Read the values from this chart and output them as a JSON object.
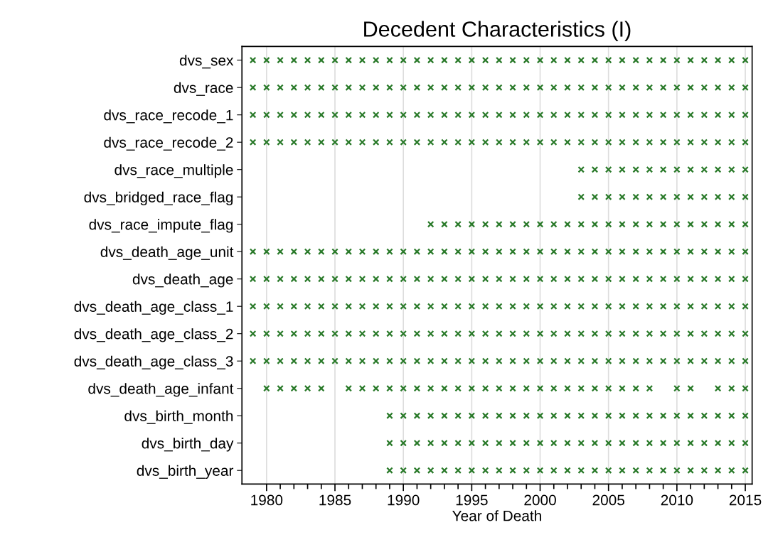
{
  "chart_data": {
    "type": "scatter",
    "title": "Decedent Characteristics (I)",
    "xlabel": "Year of Death",
    "orientation": "horizontal",
    "marker": "cross",
    "grid": "x",
    "color": "#2a7a2a",
    "xlim": [
      1978.2,
      2015.5
    ],
    "xticks": [
      1980,
      {
        "value": 1981,
        "label": null
      },
      {
        "value": 1982,
        "label": null
      },
      {
        "value": 1983,
        "label": null
      },
      {
        "value": 1984,
        "label": null
      },
      1985,
      {
        "value": 1986,
        "label": null
      },
      {
        "value": 1987,
        "label": null
      },
      {
        "value": 1988,
        "label": null
      },
      {
        "value": 1989,
        "label": null
      },
      1990,
      {
        "value": 1991,
        "label": null
      },
      {
        "value": 1992,
        "label": null
      },
      {
        "value": 1993,
        "label": null
      },
      {
        "value": 1994,
        "label": null
      },
      1995,
      {
        "value": 1996,
        "label": null
      },
      {
        "value": 1997,
        "label": null
      },
      {
        "value": 1998,
        "label": null
      },
      {
        "value": 1999,
        "label": null
      },
      2000,
      {
        "value": 2001,
        "label": null
      },
      {
        "value": 2002,
        "label": null
      },
      {
        "value": 2003,
        "label": null
      },
      {
        "value": 2004,
        "label": null
      },
      2005,
      {
        "value": 2006,
        "label": null
      },
      {
        "value": 2007,
        "label": null
      },
      {
        "value": 2008,
        "label": null
      },
      {
        "value": 2009,
        "label": null
      },
      2010,
      {
        "value": 2011,
        "label": null
      },
      {
        "value": 2012,
        "label": null
      },
      {
        "value": 2013,
        "label": null
      },
      {
        "value": 2014,
        "label": null
      },
      2015
    ],
    "categories": [
      "dvs_sex",
      "dvs_race",
      "dvs_race_recode_1",
      "dvs_race_recode_2",
      "dvs_race_multiple",
      "dvs_bridged_race_flag",
      "dvs_race_impute_flag",
      "dvs_death_age_unit",
      "dvs_death_age",
      "dvs_death_age_class_1",
      "dvs_death_age_class_2",
      "dvs_death_age_class_3",
      "dvs_death_age_infant",
      "dvs_birth_month",
      "dvs_birth_day",
      "dvs_birth_year"
    ],
    "series": [
      {
        "values": [
          1979,
          1979,
          1979,
          1979,
          null,
          null,
          null,
          1979,
          1979,
          1979,
          1979,
          1979,
          null,
          null,
          null,
          null
        ]
      },
      {
        "values": [
          1980,
          1980,
          1980,
          1980,
          null,
          null,
          null,
          1980,
          1980,
          1980,
          1980,
          1980,
          1980,
          null,
          null,
          null
        ]
      },
      {
        "values": [
          1981,
          1981,
          1981,
          1981,
          null,
          null,
          null,
          1981,
          1981,
          1981,
          1981,
          1981,
          1981,
          null,
          null,
          null
        ]
      },
      {
        "values": [
          1982,
          1982,
          1982,
          1982,
          null,
          null,
          null,
          1982,
          1982,
          1982,
          1982,
          1982,
          1982,
          null,
          null,
          null
        ]
      },
      {
        "values": [
          1983,
          1983,
          1983,
          1983,
          null,
          null,
          null,
          1983,
          1983,
          1983,
          1983,
          1983,
          1983,
          null,
          null,
          null
        ]
      },
      {
        "values": [
          1984,
          1984,
          1984,
          1984,
          null,
          null,
          null,
          1984,
          1984,
          1984,
          1984,
          1984,
          1984,
          null,
          null,
          null
        ]
      },
      {
        "values": [
          1985,
          1985,
          1985,
          1985,
          null,
          null,
          null,
          1985,
          1985,
          1985,
          1985,
          1985,
          null,
          null,
          null,
          null
        ]
      },
      {
        "values": [
          1986,
          1986,
          1986,
          1986,
          null,
          null,
          null,
          1986,
          1986,
          1986,
          1986,
          1986,
          1986,
          null,
          null,
          null
        ]
      },
      {
        "values": [
          1987,
          1987,
          1987,
          1987,
          null,
          null,
          null,
          1987,
          1987,
          1987,
          1987,
          1987,
          1987,
          null,
          null,
          null
        ]
      },
      {
        "values": [
          1988,
          1988,
          1988,
          1988,
          null,
          null,
          null,
          1988,
          1988,
          1988,
          1988,
          1988,
          1988,
          null,
          null,
          null
        ]
      },
      {
        "values": [
          1989,
          1989,
          1989,
          1989,
          null,
          null,
          null,
          1989,
          1989,
          1989,
          1989,
          1989,
          1989,
          1989,
          1989,
          1989
        ]
      },
      {
        "values": [
          1990,
          1990,
          1990,
          1990,
          null,
          null,
          null,
          1990,
          1990,
          1990,
          1990,
          1990,
          1990,
          1990,
          1990,
          1990
        ]
      },
      {
        "values": [
          1991,
          1991,
          1991,
          1991,
          null,
          null,
          null,
          1991,
          1991,
          1991,
          1991,
          1991,
          1991,
          1991,
          1991,
          1991
        ]
      },
      {
        "values": [
          1992,
          1992,
          1992,
          1992,
          null,
          null,
          1992,
          1992,
          1992,
          1992,
          1992,
          1992,
          1992,
          1992,
          1992,
          1992
        ]
      },
      {
        "values": [
          1993,
          1993,
          1993,
          1993,
          null,
          null,
          1993,
          1993,
          1993,
          1993,
          1993,
          1993,
          1993,
          1993,
          1993,
          1993
        ]
      },
      {
        "values": [
          1994,
          1994,
          1994,
          1994,
          null,
          null,
          1994,
          1994,
          1994,
          1994,
          1994,
          1994,
          1994,
          1994,
          1994,
          1994
        ]
      },
      {
        "values": [
          1995,
          1995,
          1995,
          1995,
          null,
          null,
          1995,
          1995,
          1995,
          1995,
          1995,
          1995,
          1995,
          1995,
          1995,
          1995
        ]
      },
      {
        "values": [
          1996,
          1996,
          1996,
          1996,
          null,
          null,
          1996,
          1996,
          1996,
          1996,
          1996,
          1996,
          1996,
          1996,
          1996,
          1996
        ]
      },
      {
        "values": [
          1997,
          1997,
          1997,
          1997,
          null,
          null,
          1997,
          1997,
          1997,
          1997,
          1997,
          1997,
          1997,
          1997,
          1997,
          1997
        ]
      },
      {
        "values": [
          1998,
          1998,
          1998,
          1998,
          null,
          null,
          1998,
          1998,
          1998,
          1998,
          1998,
          1998,
          1998,
          1998,
          1998,
          1998
        ]
      },
      {
        "values": [
          1999,
          1999,
          1999,
          1999,
          null,
          null,
          1999,
          1999,
          1999,
          1999,
          1999,
          1999,
          1999,
          1999,
          1999,
          1999
        ]
      },
      {
        "values": [
          2000,
          2000,
          2000,
          2000,
          null,
          null,
          2000,
          2000,
          2000,
          2000,
          2000,
          2000,
          2000,
          2000,
          2000,
          2000
        ]
      },
      {
        "values": [
          2001,
          2001,
          2001,
          2001,
          null,
          null,
          2001,
          2001,
          2001,
          2001,
          2001,
          2001,
          2001,
          2001,
          2001,
          2001
        ]
      },
      {
        "values": [
          2002,
          2002,
          2002,
          2002,
          null,
          null,
          2002,
          2002,
          2002,
          2002,
          2002,
          2002,
          2002,
          2002,
          2002,
          2002
        ]
      },
      {
        "values": [
          2003,
          2003,
          2003,
          2003,
          2003,
          2003,
          2003,
          2003,
          2003,
          2003,
          2003,
          2003,
          2003,
          2003,
          2003,
          2003
        ]
      },
      {
        "values": [
          2004,
          2004,
          2004,
          2004,
          2004,
          2004,
          2004,
          2004,
          2004,
          2004,
          2004,
          2004,
          2004,
          2004,
          2004,
          2004
        ]
      },
      {
        "values": [
          2005,
          2005,
          2005,
          2005,
          2005,
          2005,
          2005,
          2005,
          2005,
          2005,
          2005,
          2005,
          2005,
          2005,
          2005,
          2005
        ]
      },
      {
        "values": [
          2006,
          2006,
          2006,
          2006,
          2006,
          2006,
          2006,
          2006,
          2006,
          2006,
          2006,
          2006,
          2006,
          2006,
          2006,
          2006
        ]
      },
      {
        "values": [
          2007,
          2007,
          2007,
          2007,
          2007,
          2007,
          2007,
          2007,
          2007,
          2007,
          2007,
          2007,
          2007,
          2007,
          2007,
          2007
        ]
      },
      {
        "values": [
          2008,
          2008,
          2008,
          2008,
          2008,
          2008,
          2008,
          2008,
          2008,
          2008,
          2008,
          2008,
          2008,
          2008,
          2008,
          2008
        ]
      },
      {
        "values": [
          2009,
          2009,
          2009,
          2009,
          2009,
          2009,
          2009,
          2009,
          2009,
          2009,
          2009,
          2009,
          null,
          2009,
          2009,
          2009
        ]
      },
      {
        "values": [
          2010,
          2010,
          2010,
          2010,
          2010,
          2010,
          2010,
          2010,
          2010,
          2010,
          2010,
          2010,
          2010,
          2010,
          2010,
          2010
        ]
      },
      {
        "values": [
          2011,
          2011,
          2011,
          2011,
          2011,
          2011,
          2011,
          2011,
          2011,
          2011,
          2011,
          2011,
          2011,
          2011,
          2011,
          2011
        ]
      },
      {
        "values": [
          2012,
          2012,
          2012,
          2012,
          2012,
          2012,
          2012,
          2012,
          2012,
          2012,
          2012,
          2012,
          null,
          2012,
          2012,
          2012
        ]
      },
      {
        "values": [
          2013,
          2013,
          2013,
          2013,
          2013,
          2013,
          2013,
          2013,
          2013,
          2013,
          2013,
          2013,
          2013,
          2013,
          2013,
          2013
        ]
      },
      {
        "values": [
          2014,
          2014,
          2014,
          2014,
          2014,
          2014,
          2014,
          2014,
          2014,
          2014,
          2014,
          2014,
          2014,
          2014,
          2014,
          2014
        ]
      },
      {
        "values": [
          2015,
          2015,
          2015,
          2015,
          2015,
          2015,
          2015,
          2015,
          2015,
          2015,
          2015,
          2015,
          2015,
          2015,
          2015,
          2015
        ]
      }
    ]
  }
}
